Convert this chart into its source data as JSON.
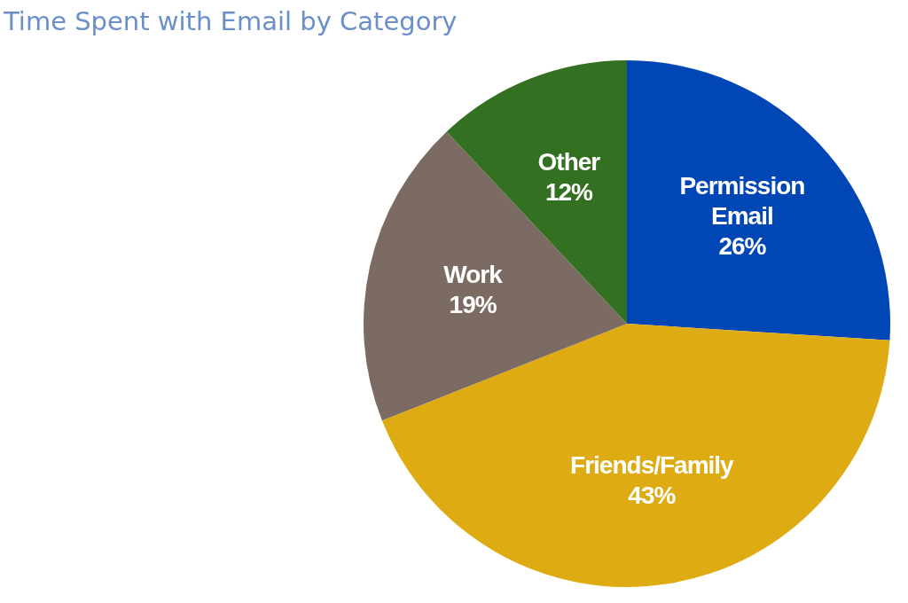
{
  "chart_data": {
    "type": "pie",
    "title": "Time Spent with Email by Category",
    "categories": [
      "Permission Email",
      "Friends/Family",
      "Work",
      "Other"
    ],
    "values": [
      26,
      43,
      19,
      12
    ],
    "colors": [
      "#0047b5",
      "#deab13",
      "#7b6b63",
      "#347022"
    ],
    "value_labels": [
      "26%",
      "43%",
      "19%",
      "12%"
    ]
  }
}
